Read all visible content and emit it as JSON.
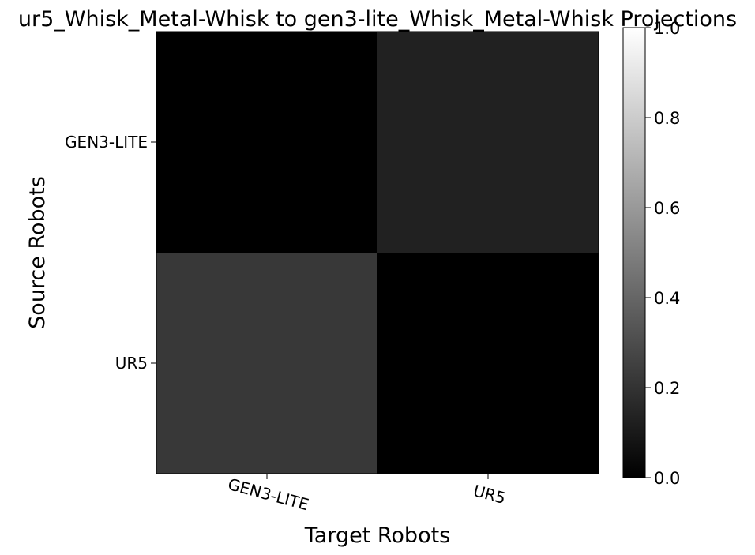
{
  "chart_data": {
    "type": "heatmap",
    "title": "ur5_Whisk_Metal-Whisk to gen3-lite_Whisk_Metal-Whisk Projections",
    "xlabel": "Target Robots",
    "ylabel": "Source Robots",
    "x_categories": [
      "GEN3-LITE",
      "UR5"
    ],
    "y_categories": [
      "GEN3-LITE",
      "UR5"
    ],
    "values": [
      [
        0.0,
        0.13
      ],
      [
        0.22,
        0.0
      ]
    ],
    "colormap": "gray",
    "colormap_colors": [
      "#000000",
      "#ffffff"
    ],
    "vmin": 0.0,
    "vmax": 1.0,
    "colorbar_ticks": [
      0.0,
      0.2,
      0.4,
      0.6,
      0.8,
      1.0
    ],
    "colorbar_tick_labels": [
      "0.0",
      "0.2",
      "0.4",
      "0.6",
      "0.8",
      "1.0"
    ],
    "colorbar_placement": "right",
    "grid": false
  }
}
